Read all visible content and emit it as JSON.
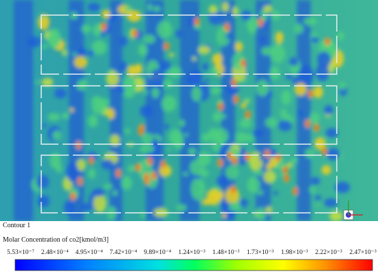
{
  "contour": {
    "title": "Contour 1",
    "variable": "Molar Concentration of co2[kmol/m3]",
    "colorbar": {
      "labels": [
        "5.53×10⁻⁷",
        "2.48×10⁻⁴",
        "4.95×10⁻⁴",
        "7.42×10⁻⁴",
        "9.89×10⁻⁴",
        "1.24×10⁻³",
        "1.48×10⁻³",
        "1.73×10⁻³",
        "1.98×10⁻³",
        "2.22×10⁻³",
        "2.47×10⁻³"
      ]
    }
  }
}
